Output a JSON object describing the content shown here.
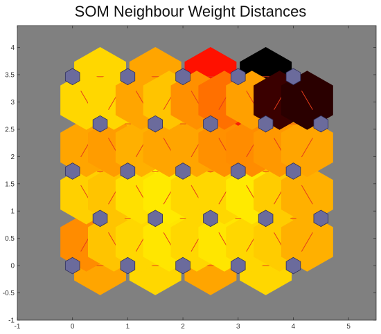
{
  "chart_data": {
    "type": "heatmap",
    "title": "SOM Neighbour Weight Distances",
    "xlim": [
      -1,
      5.5
    ],
    "ylim": [
      -1,
      4.4
    ],
    "x_ticks": [
      "-1",
      "0",
      "1",
      "2",
      "3",
      "4",
      "5"
    ],
    "y_ticks": [
      "-1",
      "-0.5",
      "0",
      "0.5",
      "1",
      "1.5",
      "2",
      "2.5",
      "3",
      "3.5",
      "4"
    ],
    "background_color": "#808080",
    "neuron_color": "#6b6b9c",
    "line_color": "#e53b1a",
    "neurons": [
      [
        0,
        0
      ],
      [
        1,
        0
      ],
      [
        2,
        0
      ],
      [
        3,
        0
      ],
      [
        4,
        0
      ],
      [
        0.5,
        0.866
      ],
      [
        1.5,
        0.866
      ],
      [
        2.5,
        0.866
      ],
      [
        3.5,
        0.866
      ],
      [
        4.5,
        0.866
      ],
      [
        0,
        1.732
      ],
      [
        1,
        1.732
      ],
      [
        2,
        1.732
      ],
      [
        3,
        1.732
      ],
      [
        4,
        1.732
      ],
      [
        0.5,
        2.598
      ],
      [
        1.5,
        2.598
      ],
      [
        2.5,
        2.598
      ],
      [
        3.5,
        2.598
      ],
      [
        4.5,
        2.598
      ],
      [
        0,
        3.464
      ],
      [
        1,
        3.464
      ],
      [
        2,
        3.464
      ],
      [
        3,
        3.464
      ],
      [
        4,
        3.464
      ]
    ],
    "horizontal_links": [
      {
        "x": 0.5,
        "y": 0,
        "color": "#ffa500"
      },
      {
        "x": 1.5,
        "y": 0,
        "color": "#ffd700"
      },
      {
        "x": 2.5,
        "y": 0,
        "color": "#ffa500"
      },
      {
        "x": 3.5,
        "y": 0,
        "color": "#ffd700"
      },
      {
        "x": 1.0,
        "y": 0.866,
        "color": "#ffd700"
      },
      {
        "x": 2.0,
        "y": 0.866,
        "color": "#ffea00"
      },
      {
        "x": 3.0,
        "y": 0.866,
        "color": "#ffe600"
      },
      {
        "x": 4.0,
        "y": 0.866,
        "color": "#ffb000"
      },
      {
        "x": 0.5,
        "y": 1.732,
        "color": "#ffb000"
      },
      {
        "x": 1.5,
        "y": 1.732,
        "color": "#ffff00"
      },
      {
        "x": 2.5,
        "y": 1.732,
        "color": "#ffa500"
      },
      {
        "x": 3.5,
        "y": 1.732,
        "color": "#ffc400"
      },
      {
        "x": 1.0,
        "y": 2.598,
        "color": "#ffcc00"
      },
      {
        "x": 2.0,
        "y": 2.598,
        "color": "#ffb000"
      },
      {
        "x": 3.0,
        "y": 2.598,
        "color": "#ff1100"
      },
      {
        "x": 4.0,
        "y": 2.598,
        "color": "#ffa500"
      },
      {
        "x": 0.5,
        "y": 3.464,
        "color": "#ffd700"
      },
      {
        "x": 1.5,
        "y": 3.464,
        "color": "#ffa500"
      },
      {
        "x": 2.5,
        "y": 3.464,
        "color": "#ff1100"
      },
      {
        "x": 3.5,
        "y": 3.464,
        "color": "#000000"
      }
    ],
    "diagonal_links": [
      {
        "x": 0.25,
        "y": 0.433,
        "dir": "right",
        "color": "#ff8c00"
      },
      {
        "x": 0.75,
        "y": 0.433,
        "dir": "left",
        "color": "#ffc400"
      },
      {
        "x": 1.25,
        "y": 0.433,
        "dir": "right",
        "color": "#ffd700"
      },
      {
        "x": 1.75,
        "y": 0.433,
        "dir": "left",
        "color": "#ffe600"
      },
      {
        "x": 2.25,
        "y": 0.433,
        "dir": "right",
        "color": "#ffd700"
      },
      {
        "x": 2.75,
        "y": 0.433,
        "dir": "left",
        "color": "#ffe600"
      },
      {
        "x": 3.25,
        "y": 0.433,
        "dir": "right",
        "color": "#ffd700"
      },
      {
        "x": 3.75,
        "y": 0.433,
        "dir": "left",
        "color": "#ffcc00"
      },
      {
        "x": 4.25,
        "y": 0.433,
        "dir": "right",
        "color": "#ffb000"
      },
      {
        "x": 0.25,
        "y": 1.299,
        "dir": "left",
        "color": "#ffd000"
      },
      {
        "x": 0.75,
        "y": 1.299,
        "dir": "right",
        "color": "#ffc400"
      },
      {
        "x": 1.25,
        "y": 1.299,
        "dir": "left",
        "color": "#ffe000"
      },
      {
        "x": 1.75,
        "y": 1.299,
        "dir": "right",
        "color": "#ffea00"
      },
      {
        "x": 2.25,
        "y": 1.299,
        "dir": "left",
        "color": "#ffd700"
      },
      {
        "x": 2.75,
        "y": 1.299,
        "dir": "right",
        "color": "#ffd700"
      },
      {
        "x": 3.25,
        "y": 1.299,
        "dir": "left",
        "color": "#ffea00"
      },
      {
        "x": 3.75,
        "y": 1.299,
        "dir": "right",
        "color": "#ffcc00"
      },
      {
        "x": 4.25,
        "y": 1.299,
        "dir": "left",
        "color": "#ffb000"
      },
      {
        "x": 0.25,
        "y": 2.165,
        "dir": "right",
        "color": "#ffa500"
      },
      {
        "x": 0.75,
        "y": 2.165,
        "dir": "left",
        "color": "#ff9c00"
      },
      {
        "x": 1.25,
        "y": 2.165,
        "dir": "right",
        "color": "#ffb000"
      },
      {
        "x": 1.75,
        "y": 2.165,
        "dir": "left",
        "color": "#ffa500"
      },
      {
        "x": 2.25,
        "y": 2.165,
        "dir": "right",
        "color": "#ffa500"
      },
      {
        "x": 2.75,
        "y": 2.165,
        "dir": "left",
        "color": "#ff9000"
      },
      {
        "x": 3.25,
        "y": 2.165,
        "dir": "right",
        "color": "#ff8c00"
      },
      {
        "x": 3.75,
        "y": 2.165,
        "dir": "left",
        "color": "#ff9800"
      },
      {
        "x": 4.25,
        "y": 2.165,
        "dir": "right",
        "color": "#ffa500"
      },
      {
        "x": 0.25,
        "y": 3.031,
        "dir": "left",
        "color": "#ffd700"
      },
      {
        "x": 0.75,
        "y": 3.031,
        "dir": "right",
        "color": "#ffd700"
      },
      {
        "x": 1.25,
        "y": 3.031,
        "dir": "left",
        "color": "#ffa500"
      },
      {
        "x": 1.75,
        "y": 3.031,
        "dir": "right",
        "color": "#ffc400"
      },
      {
        "x": 2.25,
        "y": 3.031,
        "dir": "left",
        "color": "#ff9000"
      },
      {
        "x": 2.75,
        "y": 3.031,
        "dir": "right",
        "color": "#ff7000"
      },
      {
        "x": 3.25,
        "y": 3.031,
        "dir": "left",
        "color": "#ffa000"
      },
      {
        "x": 3.75,
        "y": 3.031,
        "dir": "right",
        "color": "#3a0000"
      },
      {
        "x": 4.25,
        "y": 3.031,
        "dir": "left",
        "color": "#2a0000"
      }
    ]
  }
}
